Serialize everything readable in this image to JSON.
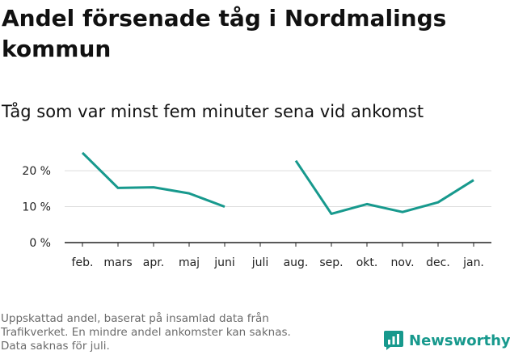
{
  "header": {
    "title": "Andel försenade tåg i Nordmalings kommun",
    "subtitle": "Tåg som var minst fem minuter sena vid ankomst"
  },
  "footnote": {
    "lines": [
      "Uppskattad andel, baserat på insamlad data från",
      "Trafikverket. En mindre andel ankomster kan saknas.",
      "Data saknas för juli."
    ]
  },
  "brand": {
    "name": "Newsworthy",
    "logo_icon": "bar-chart-speech-bubble-icon",
    "color": "#17998d"
  },
  "chart_data": {
    "type": "line",
    "title": "Andel försenade tåg i Nordmalings kommun",
    "subtitle": "Tåg som var minst fem minuter sena vid ankomst",
    "xlabel": "",
    "ylabel": "",
    "categories": [
      "feb.",
      "mars",
      "apr.",
      "maj",
      "juni",
      "juli",
      "aug.",
      "sep.",
      "okt.",
      "nov.",
      "dec.",
      "jan."
    ],
    "series": [
      {
        "values": [
          25,
          15.2,
          15.4,
          13.7,
          10,
          null,
          22.8,
          8,
          10.7,
          8.5,
          11.2,
          17.4
        ],
        "color": "#17998d"
      }
    ],
    "yticks": [
      0,
      10,
      20
    ],
    "ytick_labels": [
      "0 %",
      "10 %",
      "20 %"
    ],
    "ylim": [
      0,
      27
    ],
    "grid": "horizontal",
    "legend": "none"
  }
}
